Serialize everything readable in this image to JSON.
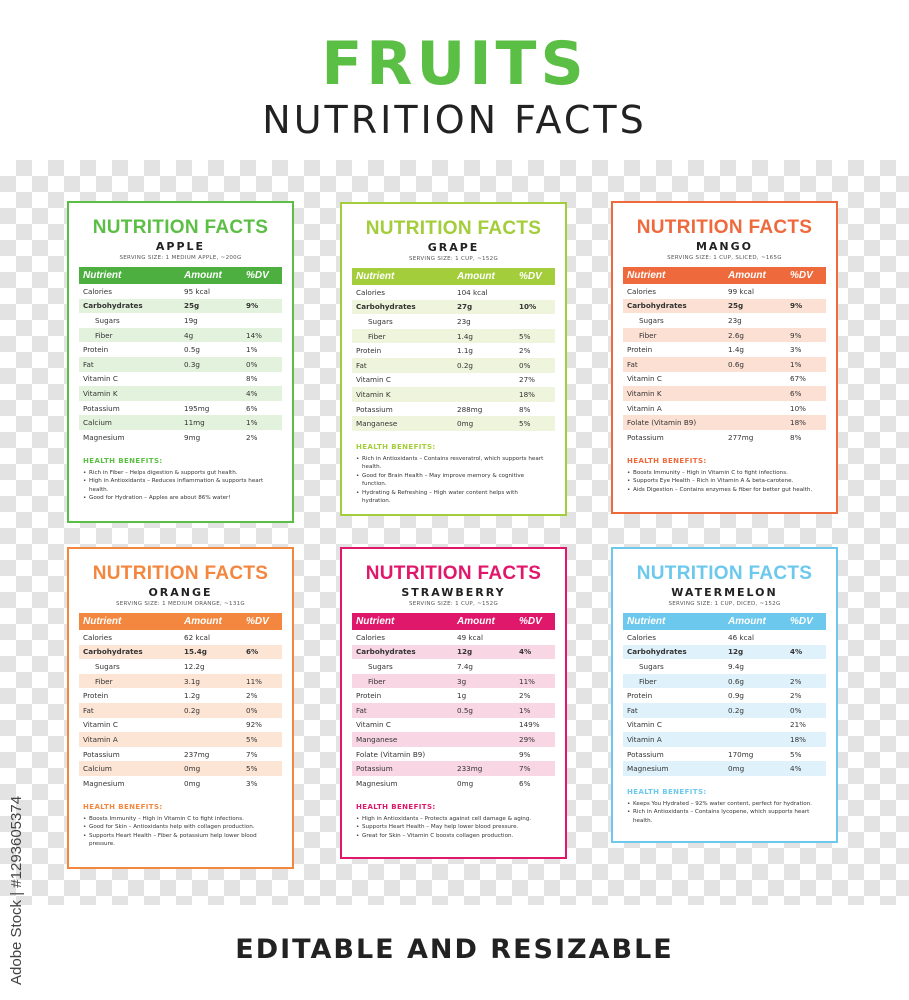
{
  "header": {
    "title": "FRUITS",
    "subtitle": "NUTRITION FACTS"
  },
  "footer": {
    "text": "EDITABLE AND RESIZABLE",
    "stock_id": "Adobe Stock | #1293605374"
  },
  "cards": [
    {
      "title": "NUTRITION FACTS",
      "fruit": "APPLE",
      "serving": "SERVING SIZE: 1 MEDIUM APPLE, ~200G",
      "color": "#5cbf45",
      "hdr_color": "#4caf3f",
      "tint": "#e3f2dc",
      "columns": [
        "Nutrient",
        "Amount",
        "%DV"
      ],
      "rows": [
        {
          "n": "Calories",
          "a": "95 kcal",
          "d": "",
          "bold": false,
          "indent": false,
          "tint": false
        },
        {
          "n": "Carbohydrates",
          "a": "25g",
          "d": "9%",
          "bold": true,
          "indent": false,
          "tint": true
        },
        {
          "n": "Sugars",
          "a": "19g",
          "d": "",
          "bold": false,
          "indent": true,
          "tint": false
        },
        {
          "n": "Fiber",
          "a": "4g",
          "d": "14%",
          "bold": false,
          "indent": true,
          "tint": true
        },
        {
          "n": "Protein",
          "a": "0.5g",
          "d": "1%",
          "bold": false,
          "indent": false,
          "tint": false
        },
        {
          "n": "Fat",
          "a": "0.3g",
          "d": "0%",
          "bold": false,
          "indent": false,
          "tint": true
        },
        {
          "n": "Vitamin C",
          "a": "",
          "d": "8%",
          "bold": false,
          "indent": false,
          "tint": false
        },
        {
          "n": "Vitamin K",
          "a": "",
          "d": "4%",
          "bold": false,
          "indent": false,
          "tint": true
        },
        {
          "n": "Potassium",
          "a": "195mg",
          "d": "6%",
          "bold": false,
          "indent": false,
          "tint": false
        },
        {
          "n": "Calcium",
          "a": "11mg",
          "d": "1%",
          "bold": false,
          "indent": false,
          "tint": true
        },
        {
          "n": "Magnesium",
          "a": "9mg",
          "d": "2%",
          "bold": false,
          "indent": false,
          "tint": false
        }
      ],
      "benefits_title": "HEALTH BENEFITS:",
      "benefits": [
        "Rich in Fiber – Helps digestion & supports gut health.",
        "High in Antioxidants – Reduces inflammation & supports heart health.",
        "Good for Hydration – Apples are about 86% water!"
      ]
    },
    {
      "title": "NUTRITION FACTS",
      "fruit": "GRAPE",
      "serving": "SERVING SIZE: 1 CUP, ~152G",
      "color": "#a3cd3a",
      "hdr_color": "#a3cd3a",
      "tint": "#eef5dc",
      "columns": [
        "Nutrient",
        "Amount",
        "%DV"
      ],
      "rows": [
        {
          "n": "Calories",
          "a": "104 kcal",
          "d": "",
          "bold": false,
          "indent": false,
          "tint": false
        },
        {
          "n": "Carbohydrates",
          "a": "27g",
          "d": "10%",
          "bold": true,
          "indent": false,
          "tint": true
        },
        {
          "n": "Sugars",
          "a": "23g",
          "d": "",
          "bold": false,
          "indent": true,
          "tint": false
        },
        {
          "n": "Fiber",
          "a": "1.4g",
          "d": "5%",
          "bold": false,
          "indent": true,
          "tint": true
        },
        {
          "n": "Protein",
          "a": "1.1g",
          "d": "2%",
          "bold": false,
          "indent": false,
          "tint": false
        },
        {
          "n": "Fat",
          "a": "0.2g",
          "d": "0%",
          "bold": false,
          "indent": false,
          "tint": true
        },
        {
          "n": "Vitamin C",
          "a": "",
          "d": "27%",
          "bold": false,
          "indent": false,
          "tint": false
        },
        {
          "n": "Vitamin K",
          "a": "",
          "d": "18%",
          "bold": false,
          "indent": false,
          "tint": true
        },
        {
          "n": "Potassium",
          "a": "288mg",
          "d": "8%",
          "bold": false,
          "indent": false,
          "tint": false
        },
        {
          "n": "Manganese",
          "a": "0mg",
          "d": "5%",
          "bold": false,
          "indent": false,
          "tint": true
        }
      ],
      "benefits_title": "HEALTH BENEFITS:",
      "benefits": [
        "Rich in Antioxidants – Contains resveratrol, which supports heart health.",
        "Good for Brain Health – May improve memory & cognitive function.",
        "Hydrating & Refreshing – High water content helps with hydration."
      ]
    },
    {
      "title": "NUTRITION FACTS",
      "fruit": "MANGO",
      "serving": "SERVING SIZE: 1 CUP, SLICED, ~165G",
      "color": "#ee6a3d",
      "hdr_color": "#ee6a3d",
      "tint": "#fbe0d3",
      "columns": [
        "Nutrient",
        "Amount",
        "%DV"
      ],
      "rows": [
        {
          "n": "Calories",
          "a": "99 kcal",
          "d": "",
          "bold": false,
          "indent": false,
          "tint": false
        },
        {
          "n": "Carbohydrates",
          "a": "25g",
          "d": "9%",
          "bold": true,
          "indent": false,
          "tint": true
        },
        {
          "n": "Sugars",
          "a": "23g",
          "d": "",
          "bold": false,
          "indent": true,
          "tint": false
        },
        {
          "n": "Fiber",
          "a": "2.6g",
          "d": "9%",
          "bold": false,
          "indent": true,
          "tint": true
        },
        {
          "n": "Protein",
          "a": "1.4g",
          "d": "3%",
          "bold": false,
          "indent": false,
          "tint": false
        },
        {
          "n": "Fat",
          "a": "0.6g",
          "d": "1%",
          "bold": false,
          "indent": false,
          "tint": true
        },
        {
          "n": "Vitamin C",
          "a": "",
          "d": "67%",
          "bold": false,
          "indent": false,
          "tint": false
        },
        {
          "n": "Vitamin K",
          "a": "",
          "d": "6%",
          "bold": false,
          "indent": false,
          "tint": true
        },
        {
          "n": "Vitamin A",
          "a": "",
          "d": "10%",
          "bold": false,
          "indent": false,
          "tint": false
        },
        {
          "n": "Folate (Vitamin B9)",
          "a": "",
          "d": "18%",
          "bold": false,
          "indent": false,
          "tint": true
        },
        {
          "n": "Potassium",
          "a": "277mg",
          "d": "8%",
          "bold": false,
          "indent": false,
          "tint": false
        }
      ],
      "benefits_title": "HEALTH BENEFITS:",
      "benefits": [
        "Boosts Immunity – High in Vitamin C to fight infections.",
        "Supports Eye Health – Rich in Vitamin A & beta-carotene.",
        "Aids Digestion – Contains enzymes & fiber for better gut health."
      ]
    },
    {
      "title": "NUTRITION FACTS",
      "fruit": "ORANGE",
      "serving": "SERVING SIZE: 1 MEDIUM ORANGE, ~131G",
      "color": "#f4873f",
      "hdr_color": "#f4873f",
      "tint": "#fde5d5",
      "columns": [
        "Nutrient",
        "Amount",
        "%DV"
      ],
      "rows": [
        {
          "n": "Calories",
          "a": "62 kcal",
          "d": "",
          "bold": false,
          "indent": false,
          "tint": false
        },
        {
          "n": "Carbohydrates",
          "a": "15.4g",
          "d": "6%",
          "bold": true,
          "indent": false,
          "tint": true
        },
        {
          "n": "Sugars",
          "a": "12.2g",
          "d": "",
          "bold": false,
          "indent": true,
          "tint": false
        },
        {
          "n": "Fiber",
          "a": "3.1g",
          "d": "11%",
          "bold": false,
          "indent": true,
          "tint": true
        },
        {
          "n": "Protein",
          "a": "1.2g",
          "d": "2%",
          "bold": false,
          "indent": false,
          "tint": false
        },
        {
          "n": "Fat",
          "a": "0.2g",
          "d": "0%",
          "bold": false,
          "indent": false,
          "tint": true
        },
        {
          "n": "Vitamin C",
          "a": "",
          "d": "92%",
          "bold": false,
          "indent": false,
          "tint": false
        },
        {
          "n": "Vitamin A",
          "a": "",
          "d": "5%",
          "bold": false,
          "indent": false,
          "tint": true
        },
        {
          "n": "Potassium",
          "a": "237mg",
          "d": "7%",
          "bold": false,
          "indent": false,
          "tint": false
        },
        {
          "n": "Calcium",
          "a": "0mg",
          "d": "5%",
          "bold": false,
          "indent": false,
          "tint": true
        },
        {
          "n": "Magnesium",
          "a": "0mg",
          "d": "3%",
          "bold": false,
          "indent": false,
          "tint": false
        }
      ],
      "benefits_title": "HEALTH BENEFITS:",
      "benefits": [
        "Boosts Immunity – High in Vitamin C to fight infections.",
        "Good for Skin – Antioxidants help with collagen production.",
        "Supports Heart Health – Fiber & potassium help lower blood pressure."
      ]
    },
    {
      "title": "NUTRITION FACTS",
      "fruit": "STRAWBERRY",
      "serving": "SERVING SIZE: 1 CUP, ~152G",
      "color": "#e0186c",
      "hdr_color": "#e0186c",
      "tint": "#f9d6e3",
      "columns": [
        "Nutrient",
        "Amount",
        "%DV"
      ],
      "rows": [
        {
          "n": "Calories",
          "a": "49 kcal",
          "d": "",
          "bold": false,
          "indent": false,
          "tint": false
        },
        {
          "n": "Carbohydrates",
          "a": "12g",
          "d": "4%",
          "bold": true,
          "indent": false,
          "tint": true
        },
        {
          "n": "Sugars",
          "a": "7.4g",
          "d": "",
          "bold": false,
          "indent": true,
          "tint": false
        },
        {
          "n": "Fiber",
          "a": "3g",
          "d": "11%",
          "bold": false,
          "indent": true,
          "tint": true
        },
        {
          "n": "Protein",
          "a": "1g",
          "d": "2%",
          "bold": false,
          "indent": false,
          "tint": false
        },
        {
          "n": "Fat",
          "a": "0.5g",
          "d": "1%",
          "bold": false,
          "indent": false,
          "tint": true
        },
        {
          "n": "Vitamin C",
          "a": "",
          "d": "149%",
          "bold": false,
          "indent": false,
          "tint": false
        },
        {
          "n": "Manganese",
          "a": "",
          "d": "29%",
          "bold": false,
          "indent": false,
          "tint": true
        },
        {
          "n": "Folate (Vitamin B9)",
          "a": "",
          "d": "9%",
          "bold": false,
          "indent": false,
          "tint": false
        },
        {
          "n": "Potassium",
          "a": "233mg",
          "d": "7%",
          "bold": false,
          "indent": false,
          "tint": true
        },
        {
          "n": "Magnesium",
          "a": "0mg",
          "d": "6%",
          "bold": false,
          "indent": false,
          "tint": false
        }
      ],
      "benefits_title": "HEALTH BENEFITS:",
      "benefits": [
        "High in Antioxidants – Protects against cell damage & aging.",
        "Supports Heart Health – May help lower blood pressure.",
        "Great for Skin – Vitamin C boosts collagen production."
      ]
    },
    {
      "title": "NUTRITION FACTS",
      "fruit": "WATERMELON",
      "serving": "SERVING SIZE: 1 CUP, DICED, ~152G",
      "color": "#6cc8ec",
      "hdr_color": "#6cc8ec",
      "tint": "#dff2fb",
      "columns": [
        "Nutrient",
        "Amount",
        "%DV"
      ],
      "rows": [
        {
          "n": "Calories",
          "a": "46 kcal",
          "d": "",
          "bold": false,
          "indent": false,
          "tint": false
        },
        {
          "n": "Carbohydrates",
          "a": "12g",
          "d": "4%",
          "bold": true,
          "indent": false,
          "tint": true
        },
        {
          "n": "Sugars",
          "a": "9.4g",
          "d": "",
          "bold": false,
          "indent": true,
          "tint": false
        },
        {
          "n": "Fiber",
          "a": "0.6g",
          "d": "2%",
          "bold": false,
          "indent": true,
          "tint": true
        },
        {
          "n": "Protein",
          "a": "0.9g",
          "d": "2%",
          "bold": false,
          "indent": false,
          "tint": false
        },
        {
          "n": "Fat",
          "a": "0.2g",
          "d": "0%",
          "bold": false,
          "indent": false,
          "tint": true
        },
        {
          "n": "Vitamin C",
          "a": "",
          "d": "21%",
          "bold": false,
          "indent": false,
          "tint": false
        },
        {
          "n": "Vitamin A",
          "a": "",
          "d": "18%",
          "bold": false,
          "indent": false,
          "tint": true
        },
        {
          "n": "Potassium",
          "a": "170mg",
          "d": "5%",
          "bold": false,
          "indent": false,
          "tint": false
        },
        {
          "n": "Magnesium",
          "a": "0mg",
          "d": "4%",
          "bold": false,
          "indent": false,
          "tint": true
        }
      ],
      "benefits_title": "HEALTH BENEFITS:",
      "benefits": [
        "Keeps You Hydrated – 92% water content, perfect for hydration.",
        "Rich in Antioxidants – Contains lycopene, which supports heart health."
      ]
    }
  ]
}
